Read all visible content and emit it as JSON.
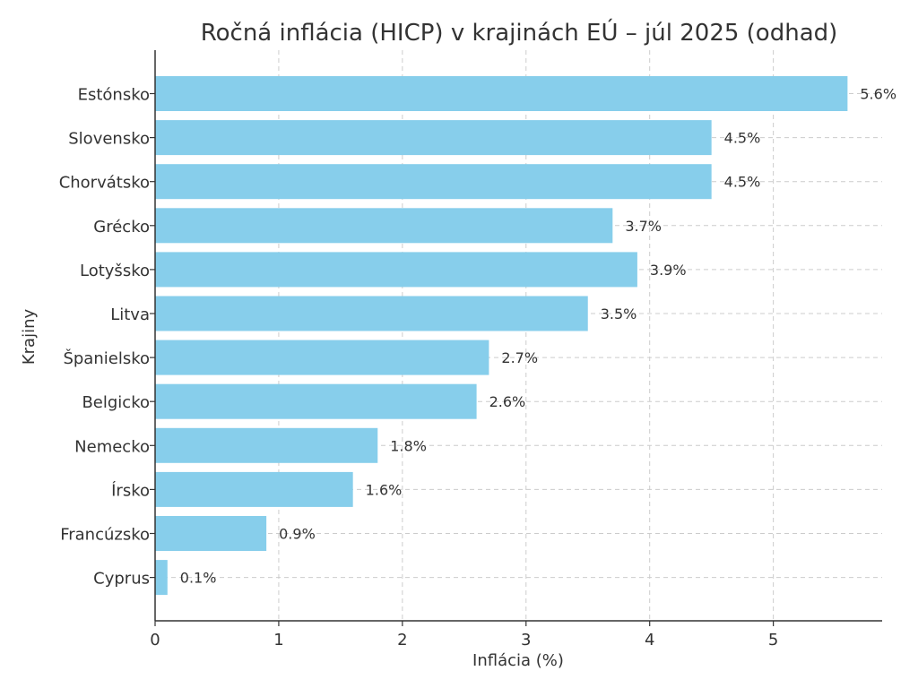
{
  "chart_data": {
    "type": "bar",
    "orientation": "horizontal",
    "title": "Ročná inflácia (HICP) v krajinách EÚ – júl 2025 (odhad)",
    "xlabel": "Inflácia (%)",
    "ylabel": "Krajiny",
    "categories": [
      "Estónsko",
      "Slovensko",
      "Chorvátsko",
      "Grécko",
      "Lotyšsko",
      "Litva",
      "Španielsko",
      "Belgicko",
      "Nemecko",
      "Írsko",
      "Francúzsko",
      "Cyprus"
    ],
    "values": [
      5.6,
      4.5,
      4.5,
      3.7,
      3.9,
      3.5,
      2.7,
      2.6,
      1.8,
      1.6,
      0.9,
      0.1
    ],
    "data_labels": [
      "5.6%",
      "4.5%",
      "4.5%",
      "3.7%",
      "3.9%",
      "3.5%",
      "2.7%",
      "2.6%",
      "1.8%",
      "1.6%",
      "0.9%",
      "0.1%"
    ],
    "xticks": [
      "0",
      "1",
      "2",
      "3",
      "4",
      "5"
    ],
    "xlim": [
      0,
      5.88
    ],
    "grid": true,
    "bar_color": "#87CEEB"
  }
}
